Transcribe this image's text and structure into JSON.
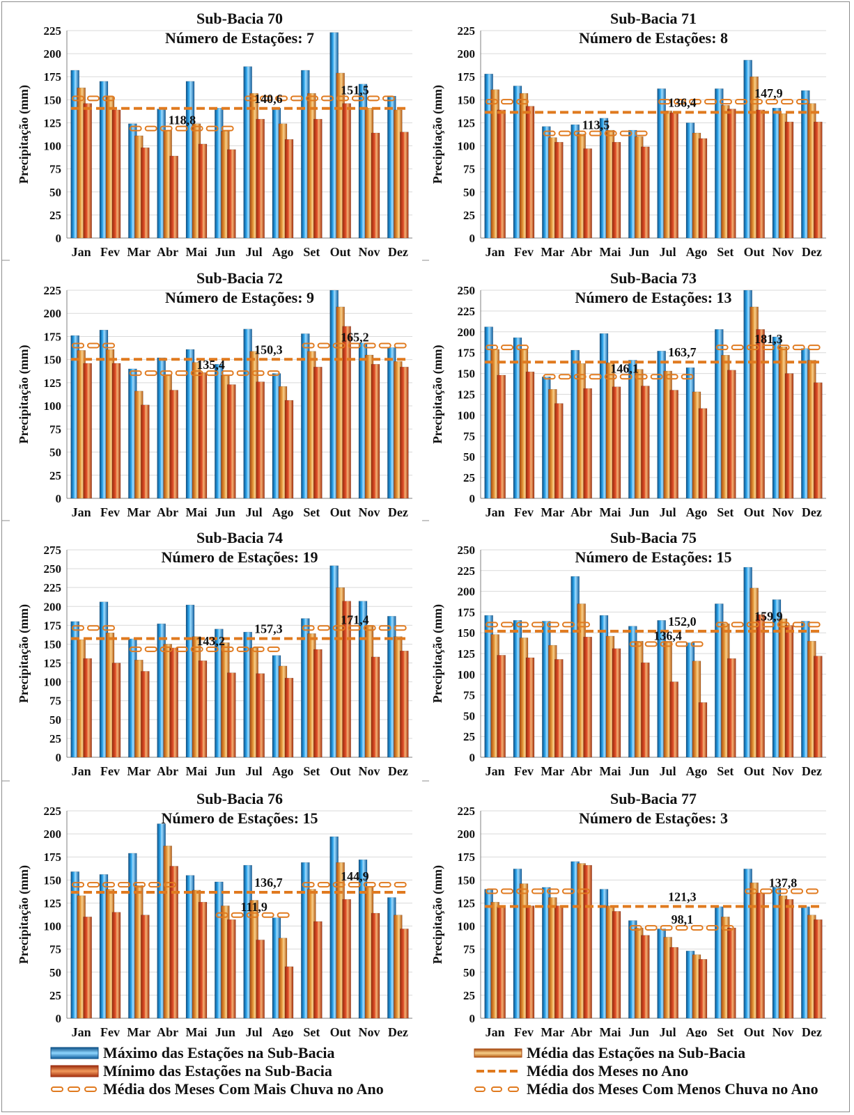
{
  "months": [
    "Jan",
    "Fev",
    "Mar",
    "Abr",
    "Mai",
    "Jun",
    "Jul",
    "Ago",
    "Set",
    "Out",
    "Nov",
    "Dez"
  ],
  "y_axis_label": "Precipitação (mm)",
  "colors": {
    "max": "#1a8fd6",
    "mean": "#d9841c",
    "min": "#d9401a",
    "line": "#e07a1f"
  },
  "legend": {
    "max": "Máximo das Estações na Sub-Bacia",
    "mean": "Média das Estações na Sub-Bacia",
    "min": "Mínimo das Estações na Sub-Bacia",
    "annual_mean": "Média dos Meses no Ano",
    "wet_mean": "Média dos Meses Com Mais Chuva no Ano",
    "dry_mean": "Média dos Meses Com Menos Chuva no Ano"
  },
  "chart_data": [
    {
      "type": "bar",
      "title": "Sub-Bacia 70",
      "subtitle": "Número de Estações: 7",
      "ylabel": "Precipitação (mm)",
      "ylim": [
        0,
        225
      ],
      "ystep": 25,
      "series": [
        {
          "name": "Máximo das Estações na Sub-Bacia",
          "values": [
            182,
            170,
            124,
            140,
            170,
            141,
            186,
            141,
            182,
            223,
            167,
            154
          ]
        },
        {
          "name": "Média das Estações na Sub-Bacia",
          "values": [
            163,
            153,
            111,
            117,
            124,
            116,
            157,
            124,
            157,
            179,
            141,
            139
          ]
        },
        {
          "name": "Mínimo das Estações na Sub-Bacia",
          "values": [
            146,
            139,
            98,
            89,
            102,
            96,
            129,
            107,
            129,
            146,
            114,
            115
          ]
        }
      ],
      "annual_mean": {
        "value": 140.6,
        "label": "140,6"
      },
      "wet_mean": {
        "value": 151.5,
        "label": "151,5",
        "months": [
          0,
          1,
          6,
          7,
          8,
          9,
          10,
          11
        ]
      },
      "dry_mean": {
        "value": 118.8,
        "label": "118,8",
        "months": [
          2,
          3,
          4,
          5
        ]
      }
    },
    {
      "type": "bar",
      "title": "Sub-Bacia 71",
      "subtitle": "Número de Estações: 8",
      "ylabel": "Precipitação (mm)",
      "ylim": [
        0,
        225
      ],
      "ystep": 25,
      "series": [
        {
          "name": "Máximo das Estações na Sub-Bacia",
          "values": [
            178,
            165,
            121,
            123,
            130,
            117,
            162,
            125,
            162,
            193,
            141,
            160
          ]
        },
        {
          "name": "Média das Estações na Sub-Bacia",
          "values": [
            161,
            157,
            109,
            113,
            117,
            110,
            138,
            114,
            144,
            175,
            135,
            146
          ]
        },
        {
          "name": "Mínimo das Estações na Sub-Bacia",
          "values": [
            139,
            143,
            104,
            97,
            104,
            99,
            136,
            108,
            140,
            139,
            126,
            126
          ]
        }
      ],
      "annual_mean": {
        "value": 136.4,
        "label": "136,4"
      },
      "wet_mean": {
        "value": 147.9,
        "label": "147,9",
        "months": [
          0,
          1,
          6,
          7,
          8,
          9,
          10,
          11
        ]
      },
      "dry_mean": {
        "value": 113.5,
        "label": "113,5",
        "months": [
          2,
          3,
          4,
          5
        ]
      }
    },
    {
      "type": "bar",
      "title": "Sub-Bacia 72",
      "subtitle": "Número de Estações: 9",
      "ylabel": "Precipitação (mm)",
      "ylim": [
        0,
        225
      ],
      "ystep": 25,
      "series": [
        {
          "name": "Máximo das Estações na Sub-Bacia",
          "values": [
            176,
            182,
            140,
            152,
            161,
            145,
            183,
            135,
            178,
            225,
            168,
            163
          ]
        },
        {
          "name": "Média das Estações na Sub-Bacia",
          "values": [
            160,
            161,
            116,
            134,
            147,
            133,
            159,
            121,
            159,
            207,
            155,
            148
          ]
        },
        {
          "name": "Mínimo das Estações na Sub-Bacia",
          "values": [
            146,
            146,
            101,
            117,
            136,
            123,
            126,
            106,
            142,
            186,
            145,
            142
          ]
        }
      ],
      "annual_mean": {
        "value": 150.3,
        "label": "150,3"
      },
      "wet_mean": {
        "value": 165.2,
        "label": "165,2",
        "months": [
          0,
          1,
          8,
          9,
          10,
          11
        ]
      },
      "dry_mean": {
        "value": 135.4,
        "label": "135,4",
        "months": [
          2,
          3,
          4,
          5,
          6,
          7
        ]
      }
    },
    {
      "type": "bar",
      "title": "Sub-Bacia 73",
      "subtitle": "Número de Estações: 13",
      "ylabel": "Precipitação  (mm)",
      "ylim": [
        0,
        250
      ],
      "ystep": 25,
      "series": [
        {
          "name": "Máximo das Estações na Sub-Bacia",
          "values": [
            206,
            193,
            146,
            178,
            198,
            166,
            177,
            157,
            203,
            250,
            194,
            180
          ]
        },
        {
          "name": "Média das Estações na Sub-Bacia",
          "values": [
            179,
            179,
            131,
            162,
            163,
            155,
            153,
            128,
            172,
            230,
            182,
            166
          ]
        },
        {
          "name": "Mínimo das Estações na Sub-Bacia",
          "values": [
            148,
            152,
            114,
            132,
            134,
            135,
            130,
            108,
            154,
            203,
            150,
            139
          ]
        }
      ],
      "annual_mean": {
        "value": 163.7,
        "label": "163,7"
      },
      "wet_mean": {
        "value": 181.3,
        "label": "181,3",
        "months": [
          0,
          1,
          8,
          9,
          10,
          11
        ]
      },
      "dry_mean": {
        "value": 146.1,
        "label": "146,1",
        "months": [
          2,
          3,
          4,
          5,
          6,
          7
        ]
      }
    },
    {
      "type": "bar",
      "title": "Sub-Bacia 74",
      "subtitle": "Número de Estações: 19",
      "ylabel": "Precipitação (mm)",
      "ylim": [
        0,
        275
      ],
      "ystep": 25,
      "series": [
        {
          "name": "Máximo das Estações na Sub-Bacia",
          "values": [
            180,
            206,
            157,
            177,
            202,
            170,
            166,
            135,
            184,
            254,
            207,
            187
          ]
        },
        {
          "name": "Média das Estações na Sub-Bacia",
          "values": [
            156,
            165,
            129,
            150,
            160,
            152,
            145,
            121,
            164,
            225,
            175,
            160
          ]
        },
        {
          "name": "Mínimo das Estações na Sub-Bacia",
          "values": [
            131,
            125,
            114,
            145,
            128,
            112,
            111,
            105,
            143,
            207,
            133,
            141
          ]
        }
      ],
      "annual_mean": {
        "value": 157.3,
        "label": "157,3"
      },
      "wet_mean": {
        "value": 171.4,
        "label": "171,4",
        "months": [
          0,
          1,
          8,
          9,
          10,
          11
        ]
      },
      "dry_mean": {
        "value": 143.2,
        "label": "143,2",
        "months": [
          2,
          3,
          4,
          5,
          6,
          7
        ]
      }
    },
    {
      "type": "bar",
      "title": "Sub-Bacia 75",
      "subtitle": "Número de Estações: 15",
      "ylabel": "Precipitação (mm)",
      "ylim": [
        0,
        250
      ],
      "ystep": 25,
      "series": [
        {
          "name": "Máximo das Estações na Sub-Bacia",
          "values": [
            171,
            165,
            164,
            218,
            171,
            158,
            165,
            138,
            185,
            229,
            190,
            164
          ]
        },
        {
          "name": "Média das Estações na Sub-Bacia",
          "values": [
            148,
            144,
            135,
            185,
            146,
            140,
            140,
            116,
            161,
            204,
            167,
            140
          ]
        },
        {
          "name": "Mínimo das Estações na Sub-Bacia",
          "values": [
            123,
            120,
            118,
            145,
            131,
            114,
            91,
            66,
            119,
            172,
            159,
            122
          ]
        }
      ],
      "annual_mean": {
        "value": 152.0,
        "label": "152,0"
      },
      "wet_mean": {
        "value": 159.9,
        "label": "159,9",
        "months": [
          0,
          1,
          2,
          3,
          8,
          9,
          10,
          11
        ]
      },
      "dry_mean": {
        "value": 136.4,
        "label": "136,4",
        "months": [
          5,
          6,
          7
        ]
      }
    },
    {
      "type": "bar",
      "title": "Sub-Bacia 76",
      "subtitle": "Número de Estações: 15",
      "ylabel": "Precipitação  (mm)",
      "ylim": [
        0,
        225
      ],
      "ystep": 25,
      "series": [
        {
          "name": "Máximo das Estações na Sub-Bacia",
          "values": [
            159,
            156,
            179,
            211,
            155,
            148,
            166,
            109,
            169,
            197,
            172,
            131
          ]
        },
        {
          "name": "Média das Estações na Sub-Bacia",
          "values": [
            133,
            140,
            144,
            187,
            139,
            122,
            128,
            87,
            140,
            169,
            143,
            112
          ]
        },
        {
          "name": "Mínimo das Estações na Sub-Bacia",
          "values": [
            110,
            115,
            112,
            165,
            126,
            107,
            85,
            56,
            105,
            129,
            114,
            97
          ]
        }
      ],
      "annual_mean": {
        "value": 136.7,
        "label": "136,7"
      },
      "wet_mean": {
        "value": 144.9,
        "label": "144,9",
        "months": [
          0,
          1,
          2,
          3,
          8,
          9,
          10,
          11
        ]
      },
      "dry_mean": {
        "value": 111.9,
        "label": "111,9",
        "months": [
          5,
          6,
          7
        ]
      }
    },
    {
      "type": "bar",
      "title": "Sub-Bacia 77",
      "subtitle": "Número de Estações: 3",
      "ylabel": "Precipitação  (mm)",
      "ylim": [
        0,
        225
      ],
      "ystep": 25,
      "series": [
        {
          "name": "Máximo das Estações na Sub-Bacia",
          "values": [
            140,
            162,
            142,
            170,
            140,
            106,
            97,
            73,
            121,
            162,
            142,
            121
          ]
        },
        {
          "name": "Média das Estações na Sub-Bacia",
          "values": [
            126,
            146,
            131,
            168,
            122,
            98,
            88,
            69,
            110,
            147,
            133,
            112
          ]
        },
        {
          "name": "Mínimo das Estações na Sub-Bacia",
          "values": [
            121,
            122,
            122,
            166,
            116,
            90,
            77,
            64,
            98,
            136,
            129,
            107
          ]
        }
      ],
      "annual_mean": {
        "value": 121.3,
        "label": "121,3"
      },
      "wet_mean": {
        "value": 137.8,
        "label": "137,8",
        "months": [
          0,
          1,
          2,
          3,
          9,
          10,
          11
        ]
      },
      "dry_mean": {
        "value": 98.1,
        "label": "98,1",
        "months": [
          5,
          6,
          7,
          8
        ]
      }
    }
  ]
}
